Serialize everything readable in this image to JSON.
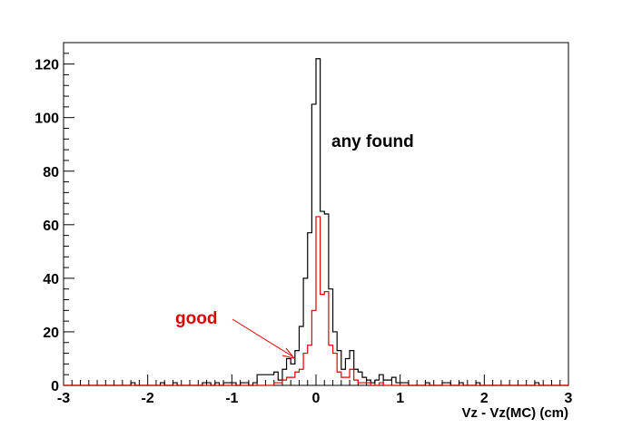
{
  "chart_data": {
    "type": "line",
    "xlabel": "Vz - Vz(MC) (cm)",
    "ylabel": "",
    "xlim": [
      -3,
      3
    ],
    "ylim": [
      0,
      128
    ],
    "x_ticks": [
      -3,
      -2,
      -1,
      0,
      1,
      2,
      3
    ],
    "y_ticks": [
      0,
      20,
      40,
      60,
      80,
      100,
      120
    ],
    "grid": false,
    "bin_width": 0.05,
    "annotations": [
      {
        "text": "any found",
        "color": "#000000"
      },
      {
        "text": "good",
        "color": "#e00000"
      }
    ],
    "series": [
      {
        "color": "#000000",
        "x": [
          -3.0,
          -2.95,
          -2.9,
          -2.85,
          -2.8,
          -2.75,
          -2.7,
          -2.65,
          -2.6,
          -2.55,
          -2.5,
          -2.45,
          -2.4,
          -2.35,
          -2.3,
          -2.25,
          -2.2,
          -2.15,
          -2.1,
          -2.05,
          -2.0,
          -1.95,
          -1.9,
          -1.85,
          -1.8,
          -1.75,
          -1.7,
          -1.65,
          -1.6,
          -1.55,
          -1.5,
          -1.45,
          -1.4,
          -1.35,
          -1.3,
          -1.25,
          -1.2,
          -1.15,
          -1.1,
          -1.05,
          -1.0,
          -0.95,
          -0.9,
          -0.85,
          -0.8,
          -0.75,
          -0.7,
          -0.65,
          -0.6,
          -0.55,
          -0.5,
          -0.45,
          -0.4,
          -0.35,
          -0.3,
          -0.25,
          -0.2,
          -0.15,
          -0.1,
          -0.05,
          0.0,
          0.05,
          0.1,
          0.15,
          0.2,
          0.25,
          0.3,
          0.35,
          0.4,
          0.45,
          0.5,
          0.55,
          0.6,
          0.65,
          0.7,
          0.75,
          0.8,
          0.85,
          0.9,
          0.95,
          1.0,
          1.05,
          1.1,
          1.15,
          1.2,
          1.25,
          1.3,
          1.35,
          1.4,
          1.45,
          1.5,
          1.55,
          1.6,
          1.65,
          1.7,
          1.75,
          1.8,
          1.85,
          1.9,
          1.95,
          2.0,
          2.05,
          2.1,
          2.15,
          2.2,
          2.25,
          2.3,
          2.35,
          2.4,
          2.45,
          2.5,
          2.55,
          2.6,
          2.65,
          2.7,
          2.75,
          2.8,
          2.85,
          2.9,
          2.95
        ],
        "values": [
          0,
          0,
          0,
          0,
          0,
          0,
          0,
          0,
          0,
          0,
          0,
          0,
          0,
          0,
          0,
          0,
          1,
          0,
          0,
          0,
          0,
          0,
          0,
          1,
          0,
          0,
          1,
          0,
          0,
          0,
          0,
          0,
          0,
          1,
          1,
          0,
          1,
          0,
          1,
          1,
          1,
          0,
          1,
          1,
          0,
          1,
          4,
          4,
          4,
          4,
          5,
          2,
          6,
          10,
          8,
          13,
          22,
          40,
          57,
          105,
          122,
          65,
          64,
          36,
          20,
          13,
          6,
          10,
          13,
          6,
          5,
          3,
          2,
          1,
          2,
          4,
          2,
          2,
          3,
          1,
          1,
          1,
          0,
          0,
          0,
          0,
          1,
          0,
          0,
          0,
          1,
          1,
          0,
          0,
          1,
          0,
          0,
          0,
          1,
          0,
          0,
          0,
          0,
          0,
          0,
          0,
          0,
          0,
          0,
          0,
          0,
          0,
          1,
          0,
          0,
          0,
          0,
          0,
          0,
          0
        ]
      },
      {
        "color": "#e00000",
        "x": [
          -3.0,
          -2.95,
          -2.9,
          -2.85,
          -2.8,
          -2.75,
          -2.7,
          -2.65,
          -2.6,
          -2.55,
          -2.5,
          -2.45,
          -2.4,
          -2.35,
          -2.3,
          -2.25,
          -2.2,
          -2.15,
          -2.1,
          -2.05,
          -2.0,
          -1.95,
          -1.9,
          -1.85,
          -1.8,
          -1.75,
          -1.7,
          -1.65,
          -1.6,
          -1.55,
          -1.5,
          -1.45,
          -1.4,
          -1.35,
          -1.3,
          -1.25,
          -1.2,
          -1.15,
          -1.1,
          -1.05,
          -1.0,
          -0.95,
          -0.9,
          -0.85,
          -0.8,
          -0.75,
          -0.7,
          -0.65,
          -0.6,
          -0.55,
          -0.5,
          -0.45,
          -0.4,
          -0.35,
          -0.3,
          -0.25,
          -0.2,
          -0.15,
          -0.1,
          -0.05,
          0.0,
          0.05,
          0.1,
          0.15,
          0.2,
          0.25,
          0.3,
          0.35,
          0.4,
          0.45,
          0.5,
          0.55,
          0.6,
          0.65,
          0.7,
          0.75,
          0.8,
          0.85,
          0.9,
          0.95,
          1.0,
          1.05,
          1.1,
          1.15,
          1.2,
          1.25,
          1.3,
          1.35,
          1.4,
          1.45,
          1.5,
          1.55,
          1.6,
          1.65,
          1.7,
          1.75,
          1.8,
          1.85,
          1.9,
          1.95,
          2.0,
          2.05,
          2.1,
          2.15,
          2.2,
          2.25,
          2.3,
          2.35,
          2.4,
          2.45,
          2.5,
          2.55,
          2.6,
          2.65,
          2.7,
          2.75,
          2.8,
          2.85,
          2.9,
          2.95
        ],
        "values": [
          0,
          0,
          0,
          0,
          0,
          0,
          0,
          0,
          0,
          0,
          0,
          0,
          0,
          0,
          0,
          0,
          0,
          0,
          0,
          0,
          0,
          0,
          0,
          0,
          0,
          0,
          0,
          0,
          0,
          0,
          0,
          0,
          0,
          0,
          0,
          0,
          0,
          0,
          0,
          0,
          0,
          0,
          0,
          0,
          0,
          0,
          0,
          0,
          0,
          0,
          1,
          1,
          2,
          3,
          3,
          5,
          6,
          12,
          15,
          28,
          63,
          34,
          35,
          15,
          12,
          5,
          3,
          3,
          6,
          2,
          1,
          1,
          1,
          0,
          0,
          1,
          0,
          0,
          0,
          0,
          0,
          0,
          0,
          0,
          0,
          0,
          0,
          0,
          0,
          0,
          0,
          0,
          0,
          0,
          0,
          0,
          0,
          0,
          0,
          0,
          0,
          0,
          0,
          0,
          0,
          0,
          0,
          0,
          0,
          0,
          0,
          0,
          0,
          0,
          0,
          0,
          0,
          0,
          0,
          0
        ]
      }
    ]
  }
}
